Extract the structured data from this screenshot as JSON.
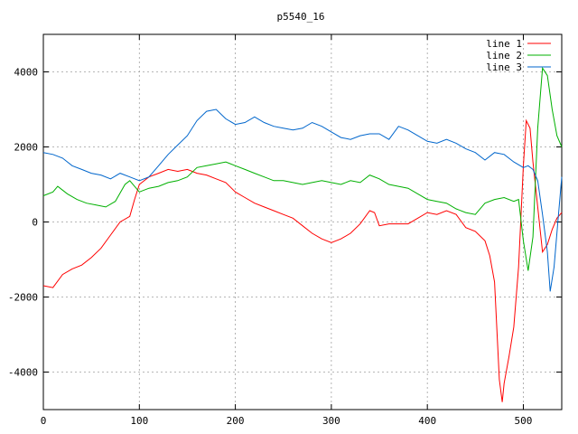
{
  "chart_data": {
    "type": "line",
    "title": "p5540_16",
    "xlabel": "",
    "ylabel": "",
    "xlim": [
      0,
      540
    ],
    "ylim": [
      -5000,
      5000
    ],
    "xticks": [
      0,
      100,
      200,
      300,
      400,
      500
    ],
    "yticks": [
      -4000,
      -2000,
      0,
      2000,
      4000
    ],
    "grid": true,
    "legend_position": "top-right",
    "series": [
      {
        "name": "line 1",
        "color": "#ff0000",
        "points": [
          [
            0,
            -1700
          ],
          [
            10,
            -1750
          ],
          [
            20,
            -1400
          ],
          [
            30,
            -1250
          ],
          [
            40,
            -1150
          ],
          [
            50,
            -950
          ],
          [
            60,
            -700
          ],
          [
            70,
            -350
          ],
          [
            80,
            0
          ],
          [
            90,
            150
          ],
          [
            95,
            600
          ],
          [
            100,
            1000
          ],
          [
            110,
            1200
          ],
          [
            120,
            1300
          ],
          [
            130,
            1400
          ],
          [
            140,
            1350
          ],
          [
            150,
            1400
          ],
          [
            160,
            1300
          ],
          [
            170,
            1250
          ],
          [
            180,
            1150
          ],
          [
            190,
            1050
          ],
          [
            200,
            800
          ],
          [
            210,
            650
          ],
          [
            220,
            500
          ],
          [
            230,
            400
          ],
          [
            240,
            300
          ],
          [
            250,
            200
          ],
          [
            260,
            100
          ],
          [
            270,
            -100
          ],
          [
            280,
            -300
          ],
          [
            290,
            -450
          ],
          [
            300,
            -550
          ],
          [
            310,
            -450
          ],
          [
            320,
            -300
          ],
          [
            330,
            -50
          ],
          [
            340,
            300
          ],
          [
            345,
            250
          ],
          [
            350,
            -100
          ],
          [
            360,
            -50
          ],
          [
            370,
            -50
          ],
          [
            380,
            -50
          ],
          [
            390,
            100
          ],
          [
            400,
            250
          ],
          [
            410,
            200
          ],
          [
            420,
            300
          ],
          [
            430,
            200
          ],
          [
            440,
            -150
          ],
          [
            450,
            -250
          ],
          [
            460,
            -500
          ],
          [
            465,
            -900
          ],
          [
            470,
            -1600
          ],
          [
            475,
            -4200
          ],
          [
            478,
            -4800
          ],
          [
            480,
            -4300
          ],
          [
            485,
            -3600
          ],
          [
            490,
            -2800
          ],
          [
            495,
            -1200
          ],
          [
            500,
            1500
          ],
          [
            503,
            2700
          ],
          [
            507,
            2500
          ],
          [
            510,
            1600
          ],
          [
            515,
            400
          ],
          [
            520,
            -800
          ],
          [
            525,
            -600
          ],
          [
            530,
            -200
          ],
          [
            535,
            100
          ],
          [
            540,
            250
          ]
        ]
      },
      {
        "name": "line 2",
        "color": "#00b000",
        "points": [
          [
            0,
            700
          ],
          [
            10,
            800
          ],
          [
            15,
            950
          ],
          [
            25,
            750
          ],
          [
            35,
            600
          ],
          [
            45,
            500
          ],
          [
            55,
            450
          ],
          [
            65,
            400
          ],
          [
            75,
            550
          ],
          [
            85,
            1000
          ],
          [
            90,
            1100
          ],
          [
            100,
            800
          ],
          [
            110,
            900
          ],
          [
            120,
            950
          ],
          [
            130,
            1050
          ],
          [
            140,
            1100
          ],
          [
            150,
            1200
          ],
          [
            160,
            1450
          ],
          [
            170,
            1500
          ],
          [
            180,
            1550
          ],
          [
            190,
            1600
          ],
          [
            200,
            1500
          ],
          [
            210,
            1400
          ],
          [
            220,
            1300
          ],
          [
            230,
            1200
          ],
          [
            240,
            1100
          ],
          [
            250,
            1100
          ],
          [
            260,
            1050
          ],
          [
            270,
            1000
          ],
          [
            280,
            1050
          ],
          [
            290,
            1100
          ],
          [
            300,
            1050
          ],
          [
            310,
            1000
          ],
          [
            320,
            1100
          ],
          [
            330,
            1050
          ],
          [
            340,
            1250
          ],
          [
            350,
            1150
          ],
          [
            360,
            1000
          ],
          [
            370,
            950
          ],
          [
            380,
            900
          ],
          [
            390,
            750
          ],
          [
            400,
            600
          ],
          [
            410,
            550
          ],
          [
            420,
            500
          ],
          [
            430,
            350
          ],
          [
            440,
            250
          ],
          [
            450,
            200
          ],
          [
            460,
            500
          ],
          [
            470,
            600
          ],
          [
            480,
            650
          ],
          [
            490,
            550
          ],
          [
            495,
            600
          ],
          [
            500,
            -500
          ],
          [
            505,
            -1300
          ],
          [
            510,
            -400
          ],
          [
            515,
            2500
          ],
          [
            520,
            4100
          ],
          [
            525,
            3900
          ],
          [
            530,
            3000
          ],
          [
            535,
            2300
          ],
          [
            540,
            2000
          ]
        ]
      },
      {
        "name": "line 3",
        "color": "#0066cc",
        "points": [
          [
            0,
            1850
          ],
          [
            10,
            1800
          ],
          [
            20,
            1700
          ],
          [
            30,
            1500
          ],
          [
            40,
            1400
          ],
          [
            50,
            1300
          ],
          [
            60,
            1250
          ],
          [
            70,
            1150
          ],
          [
            80,
            1300
          ],
          [
            90,
            1200
          ],
          [
            100,
            1100
          ],
          [
            110,
            1200
          ],
          [
            120,
            1500
          ],
          [
            130,
            1800
          ],
          [
            140,
            2050
          ],
          [
            150,
            2300
          ],
          [
            160,
            2700
          ],
          [
            170,
            2950
          ],
          [
            180,
            3000
          ],
          [
            190,
            2750
          ],
          [
            200,
            2600
          ],
          [
            210,
            2650
          ],
          [
            220,
            2800
          ],
          [
            230,
            2650
          ],
          [
            240,
            2550
          ],
          [
            250,
            2500
          ],
          [
            260,
            2450
          ],
          [
            270,
            2500
          ],
          [
            280,
            2650
          ],
          [
            290,
            2550
          ],
          [
            300,
            2400
          ],
          [
            310,
            2250
          ],
          [
            320,
            2200
          ],
          [
            330,
            2300
          ],
          [
            340,
            2350
          ],
          [
            350,
            2350
          ],
          [
            360,
            2200
          ],
          [
            370,
            2550
          ],
          [
            380,
            2450
          ],
          [
            390,
            2300
          ],
          [
            400,
            2150
          ],
          [
            410,
            2100
          ],
          [
            420,
            2200
          ],
          [
            430,
            2100
          ],
          [
            440,
            1950
          ],
          [
            450,
            1850
          ],
          [
            460,
            1650
          ],
          [
            470,
            1850
          ],
          [
            480,
            1800
          ],
          [
            490,
            1600
          ],
          [
            500,
            1450
          ],
          [
            505,
            1500
          ],
          [
            510,
            1400
          ],
          [
            515,
            1100
          ],
          [
            520,
            200
          ],
          [
            525,
            -800
          ],
          [
            528,
            -1850
          ],
          [
            532,
            -1200
          ],
          [
            536,
            0
          ],
          [
            540,
            1200
          ]
        ]
      }
    ]
  }
}
